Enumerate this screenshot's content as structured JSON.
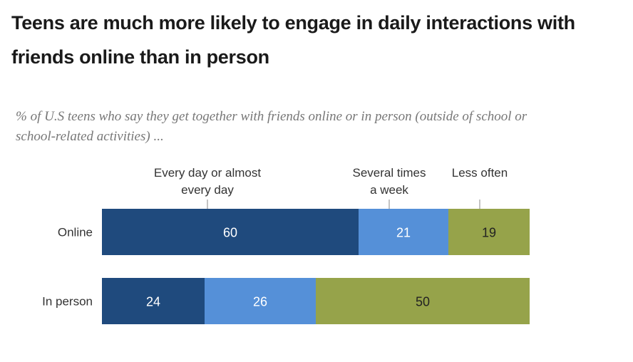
{
  "title": "Teens are much more likely to engage in daily interactions with friends online than in person",
  "subtitle": "% of U.S teens who say they get together with friends online or in person (outside of school or school-related activities) ...",
  "chart_data": {
    "type": "bar",
    "orientation": "horizontal",
    "stacked": true,
    "categories": [
      "Online",
      "In person"
    ],
    "series": [
      {
        "name": "Every day or almost every day",
        "values": [
          60,
          24
        ],
        "color": "#1f4a7d"
      },
      {
        "name": "Several times a week",
        "values": [
          21,
          26
        ],
        "color": "#5590d8"
      },
      {
        "name": "Less often",
        "values": [
          19,
          50
        ],
        "color": "#96a34a"
      }
    ],
    "xlim": [
      0,
      100
    ],
    "legend_placement": "top",
    "grid": false
  }
}
